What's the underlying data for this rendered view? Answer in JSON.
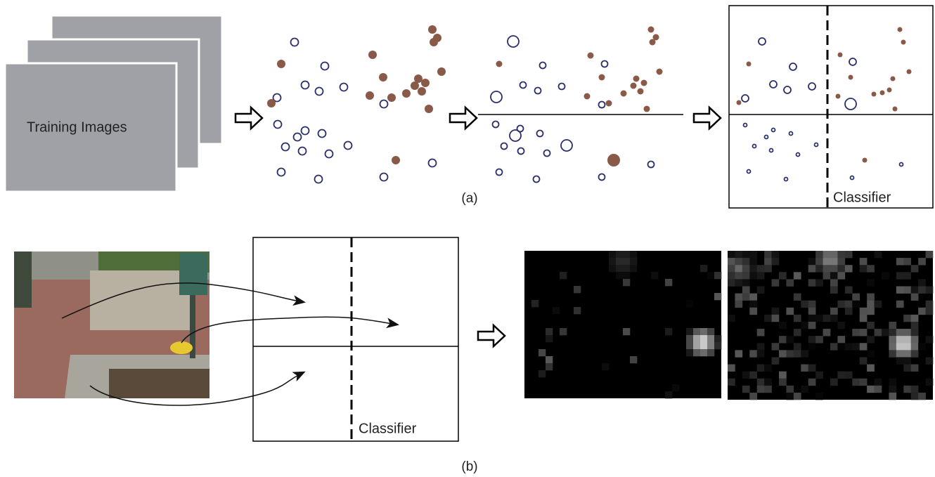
{
  "panel_a": {
    "training_label": "Training Images",
    "classifier_label": "Classifier",
    "caption": "(a)"
  },
  "panel_b": {
    "classifier_label": "Classifier",
    "caption": "(b)"
  }
}
